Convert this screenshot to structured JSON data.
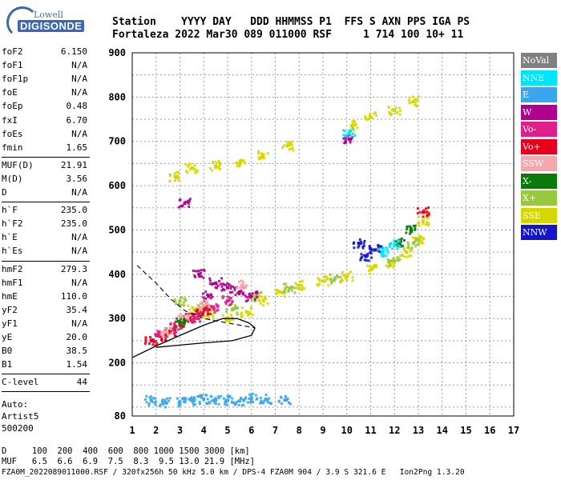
{
  "logo": {
    "line1": "Lowell",
    "line2": "DIGISONDE"
  },
  "header": {
    "line1": "Station    YYYY DAY   DDD HHMMSS P1  FFS S AXN PPS IGA PS",
    "line2": "Fortaleza 2022 Mar30 089 011000 RSF     1 714 100 10+ 11"
  },
  "params": {
    "group1": [
      {
        "label": "foF2",
        "value": "6.150"
      },
      {
        "label": "foF1",
        "value": "N/A"
      },
      {
        "label": "foF1p",
        "value": "N/A"
      },
      {
        "label": "foE",
        "value": "N/A"
      },
      {
        "label": "foEp",
        "value": "0.48"
      },
      {
        "label": "fxI",
        "value": "6.70"
      },
      {
        "label": "foEs",
        "value": "N/A"
      },
      {
        "label": "fmin",
        "value": "1.65"
      }
    ],
    "group2": [
      {
        "label": "MUF(D)",
        "value": "21.91"
      },
      {
        "label": "M(D)",
        "value": "3.56"
      },
      {
        "label": "D",
        "value": "N/A"
      }
    ],
    "group3": [
      {
        "label": "h`F",
        "value": "235.0"
      },
      {
        "label": "h`F2",
        "value": "235.0"
      },
      {
        "label": "h`E",
        "value": "N/A"
      },
      {
        "label": "h`Es",
        "value": "N/A"
      }
    ],
    "group4": [
      {
        "label": "hmF2",
        "value": "279.3"
      },
      {
        "label": "hmF1",
        "value": "N/A"
      },
      {
        "label": "hmE",
        "value": "110.0"
      },
      {
        "label": "yF2",
        "value": "35.4"
      },
      {
        "label": "yF1",
        "value": "N/A"
      },
      {
        "label": "yE",
        "value": "20.0"
      },
      {
        "label": "B0",
        "value": "38.5"
      },
      {
        "label": "B1",
        "value": "1.54"
      }
    ],
    "group5": [
      {
        "label": "C-level",
        "value": "44"
      }
    ],
    "auto": [
      "Auto:",
      "Artist5",
      "500200"
    ]
  },
  "legend": [
    {
      "label": "NoVal",
      "color": "#808080"
    },
    {
      "label": "NNE",
      "color": "#00e5ff"
    },
    {
      "label": "E",
      "color": "#3aa6f0"
    },
    {
      "label": "W",
      "color": "#b00090"
    },
    {
      "label": "Vo-",
      "color": "#e0208a"
    },
    {
      "label": "Vo+",
      "color": "#e8001c"
    },
    {
      "label": "SSW",
      "color": "#f4a8ae"
    },
    {
      "label": "X-",
      "color": "#0b7a0b"
    },
    {
      "label": "X+",
      "color": "#98c840"
    },
    {
      "label": "SSE",
      "color": "#d7d700"
    },
    {
      "label": "NNW",
      "color": "#1414c8"
    }
  ],
  "footer": {
    "line1": "D     100  200  400  600  800 1000 1500 3000 [km]",
    "line2": "MUF   6.5  6.6  6.9  7.5  8.3  9.5 13.0 21.9 [MHz]",
    "line3": "FZA0M_2022089011000.RSF / 320fx256h 50 kHz 5.0 km / DPS-4 FZA0M 904 / 3.9 S 321.6 E   Ion2Png 1.3.20"
  },
  "chart_data": {
    "type": "scatter",
    "xlim": [
      1,
      17
    ],
    "ylim": [
      80,
      900
    ],
    "x_ticks": [
      1,
      2,
      3,
      4,
      5,
      6,
      7,
      8,
      9,
      10,
      11,
      12,
      13,
      14,
      15,
      16,
      17
    ],
    "y_ticks": [
      80,
      200,
      300,
      400,
      500,
      600,
      700,
      800,
      900
    ],
    "grid": true,
    "legend_position": "right",
    "series": [
      {
        "name": "SSE",
        "color": "#d7d700",
        "points": [
          [
            3.6,
            320
          ],
          [
            4.2,
            310
          ],
          [
            5,
            300
          ],
          [
            5.8,
            315
          ],
          [
            6.5,
            340
          ],
          [
            7.2,
            360
          ],
          [
            8,
            375
          ],
          [
            9,
            385
          ],
          [
            10,
            395
          ],
          [
            11,
            410
          ],
          [
            11.8,
            425
          ],
          [
            12.5,
            450
          ],
          [
            13,
            480
          ],
          [
            13.2,
            520
          ],
          [
            2.8,
            620
          ],
          [
            3.5,
            640
          ],
          [
            4.5,
            645
          ],
          [
            5.5,
            650
          ],
          [
            6.5,
            670
          ],
          [
            7.5,
            690
          ],
          [
            10.2,
            735
          ],
          [
            11,
            755
          ],
          [
            12,
            770
          ],
          [
            12.8,
            790
          ]
        ]
      },
      {
        "name": "X+",
        "color": "#98c840",
        "points": [
          [
            3,
            340
          ],
          [
            4,
            330
          ],
          [
            5.2,
            320
          ],
          [
            6.2,
            350
          ],
          [
            7.6,
            368
          ],
          [
            9.5,
            390
          ],
          [
            12,
            430
          ],
          [
            12.8,
            470
          ]
        ]
      },
      {
        "name": "Vo+",
        "color": "#e8001c",
        "points": [
          [
            1.8,
            250
          ],
          [
            2.2,
            260
          ],
          [
            2.6,
            270
          ],
          [
            3,
            285
          ],
          [
            3.4,
            300
          ],
          [
            3.8,
            310
          ],
          [
            4.2,
            320
          ],
          [
            13.2,
            540
          ]
        ]
      },
      {
        "name": "Vo-",
        "color": "#e0208a",
        "points": [
          [
            2.2,
            265
          ],
          [
            2.8,
            280
          ],
          [
            3.6,
            300
          ],
          [
            4.4,
            325
          ],
          [
            5,
            340
          ]
        ]
      },
      {
        "name": "W",
        "color": "#b00090",
        "points": [
          [
            3.8,
            400
          ],
          [
            4.5,
            380
          ],
          [
            5,
            370
          ],
          [
            5.5,
            360
          ],
          [
            6,
            350
          ],
          [
            4.2,
            350
          ],
          [
            10.1,
            705
          ],
          [
            3.2,
            560
          ]
        ]
      },
      {
        "name": "SSW",
        "color": "#f4a8ae",
        "points": [
          [
            2.4,
            270
          ],
          [
            3.2,
            300
          ],
          [
            4,
            330
          ],
          [
            5.6,
            375
          ]
        ]
      },
      {
        "name": "X-",
        "color": "#0b7a0b",
        "points": [
          [
            12.2,
            470
          ],
          [
            12.7,
            500
          ],
          [
            3,
            290
          ]
        ]
      },
      {
        "name": "NNW",
        "color": "#1414c8",
        "points": [
          [
            10.5,
            470
          ],
          [
            11.2,
            455
          ],
          [
            10.8,
            440
          ]
        ]
      },
      {
        "name": "E",
        "color": "#3aa6f0",
        "points": [
          [
            1.8,
            115
          ],
          [
            2.4,
            110
          ],
          [
            3,
            112
          ],
          [
            3.5,
            115
          ],
          [
            4,
            118
          ],
          [
            4.5,
            116
          ],
          [
            5,
            115
          ],
          [
            5.5,
            114
          ],
          [
            6,
            120
          ],
          [
            6.6,
            118
          ],
          [
            7.4,
            116
          ]
        ]
      },
      {
        "name": "NNE",
        "color": "#00e5ff",
        "points": [
          [
            11.5,
            450
          ],
          [
            12,
            465
          ],
          [
            10.1,
            720
          ]
        ]
      }
    ]
  }
}
